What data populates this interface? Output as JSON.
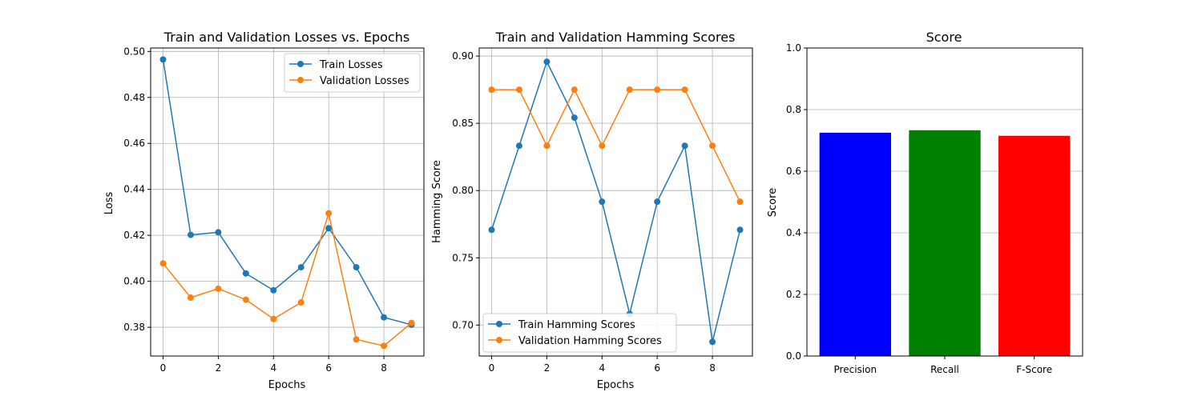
{
  "chart_data": [
    {
      "type": "line",
      "title": "Train and Validation Losses vs. Epochs",
      "xlabel": "Epochs",
      "ylabel": "Loss",
      "x": [
        0,
        1,
        2,
        3,
        4,
        5,
        6,
        7,
        8,
        9
      ],
      "xlim": [
        -0.45,
        9.45
      ],
      "ylim": [
        0.3675,
        0.5015
      ],
      "xticks": [
        0,
        2,
        4,
        6,
        8
      ],
      "yticks": [
        0.38,
        0.4,
        0.42,
        0.44,
        0.46,
        0.48,
        0.5
      ],
      "ytick_labels": [
        "0.38",
        "0.40",
        "0.42",
        "0.44",
        "0.46",
        "0.48",
        "0.50"
      ],
      "grid": true,
      "legend_position": "upper right",
      "series": [
        {
          "name": "Train Losses",
          "color": "#1f77b4",
          "values": [
            0.4965,
            0.4202,
            0.4213,
            0.4034,
            0.3961,
            0.4061,
            0.4231,
            0.4061,
            0.3843,
            0.3811
          ]
        },
        {
          "name": "Validation Losses",
          "color": "#ff7f0e",
          "values": [
            0.4078,
            0.3929,
            0.3968,
            0.392,
            0.3836,
            0.3908,
            0.4296,
            0.3747,
            0.3719,
            0.3819
          ]
        }
      ]
    },
    {
      "type": "line",
      "title": "Train and Validation Hamming Scores",
      "xlabel": "Epochs",
      "ylabel": "Hamming Score",
      "x": [
        0,
        1,
        2,
        3,
        4,
        5,
        6,
        7,
        8,
        9
      ],
      "xlim": [
        -0.45,
        9.45
      ],
      "ylim": [
        0.677,
        0.906
      ],
      "xticks": [
        0,
        2,
        4,
        6,
        8
      ],
      "yticks": [
        0.7,
        0.75,
        0.8,
        0.85,
        0.9
      ],
      "ytick_labels": [
        "0.70",
        "0.75",
        "0.80",
        "0.85",
        "0.90"
      ],
      "grid": true,
      "legend_position": "lower left",
      "series": [
        {
          "name": "Train Hamming Scores",
          "color": "#1f77b4",
          "values": [
            0.7708,
            0.8333,
            0.8958,
            0.8542,
            0.7917,
            0.7083,
            0.7917,
            0.8333,
            0.6875,
            0.7708
          ]
        },
        {
          "name": "Validation Hamming Scores",
          "color": "#ff7f0e",
          "values": [
            0.875,
            0.875,
            0.8333,
            0.875,
            0.8333,
            0.875,
            0.875,
            0.875,
            0.8333,
            0.7917
          ]
        }
      ]
    },
    {
      "type": "bar",
      "title": "Score",
      "xlabel": "",
      "ylabel": "Score",
      "categories": [
        "Precision",
        "Recall",
        "F-Score"
      ],
      "values": [
        0.725,
        0.733,
        0.715
      ],
      "colors": [
        "#0000ff",
        "#008000",
        "#ff0000"
      ],
      "ylim": [
        0,
        1
      ],
      "yticks": [
        0.0,
        0.2,
        0.4,
        0.6,
        0.8,
        1.0
      ],
      "ytick_labels": [
        "0.0",
        "0.2",
        "0.4",
        "0.6",
        "0.8",
        "1.0"
      ],
      "grid": "y"
    }
  ]
}
